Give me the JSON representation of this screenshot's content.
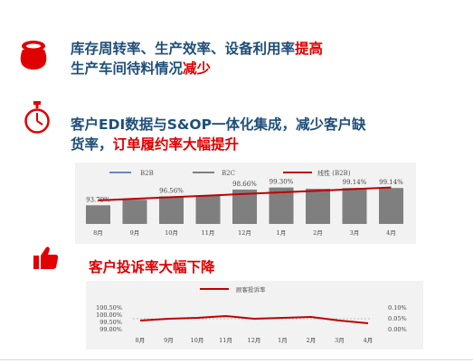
{
  "section1": {
    "icon": "money-bag-icon",
    "line1_text": "库存周转率、生产效率、设备利用率",
    "line1_highlight": "提高",
    "line2_text": "生产车间待料情况",
    "line2_highlight": "减少"
  },
  "section2": {
    "icon": "stopwatch-icon",
    "line1_text": "客户EDI数据与S&OP一体化集成，减少客户缺",
    "line2_text": "货率，",
    "line2_highlight": "订单履约率大幅提升"
  },
  "section3": {
    "icon": "thumbs-up-icon",
    "text": "客户投诉率大幅下降"
  },
  "colors": {
    "title_blue": "#1f4e79",
    "highlight_red": "#e00000",
    "bar_gray": "#7f7f7f",
    "line_red": "#c00000"
  },
  "chart_data": [
    {
      "type": "bar",
      "categories": [
        "8月",
        "9月",
        "10月",
        "11月",
        "12月",
        "1月",
        "2月",
        "3月",
        "4月"
      ],
      "series": [
        {
          "name": "B2B",
          "values": [
            93.79,
            95.5,
            96.56,
            96.8,
            98.66,
            99.3,
            98.9,
            99.14,
            99.14
          ]
        },
        {
          "name": "B2C",
          "values": [
            null,
            null,
            null,
            null,
            null,
            null,
            null,
            null,
            null
          ]
        },
        {
          "name": "线性 (B2B)",
          "values": [
            95.3,
            95.8,
            96.3,
            96.8,
            97.3,
            97.8,
            98.3,
            98.8,
            99.3
          ]
        }
      ],
      "data_labels": [
        {
          "index": 0,
          "text": "93.79%"
        },
        {
          "index": 2,
          "text": "96.56%"
        },
        {
          "index": 4,
          "text": "98.66%"
        },
        {
          "index": 5,
          "text": "99.30%"
        },
        {
          "index": 7,
          "text": "99.14%"
        },
        {
          "index": 8,
          "text": "99.14%"
        }
      ],
      "ylim": [
        88,
        102
      ],
      "legend_position": "top"
    },
    {
      "type": "line",
      "title": "顾客投诉率",
      "categories": [
        "8月",
        "9月",
        "10月",
        "11月",
        "12月",
        "1月",
        "2月",
        "3月",
        "4月"
      ],
      "series": [
        {
          "name": "顾客投诉率",
          "values": [
            0.05,
            0.06,
            0.065,
            0.075,
            0.06,
            0.065,
            0.07,
            0.05,
            0.035
          ]
        }
      ],
      "left_axis_ticks": [
        "100.50%",
        "100.00%",
        "99.50%",
        "99.00%"
      ],
      "right_axis_ticks": [
        "0.10%",
        "0.05%",
        "0.00%"
      ],
      "ylim": [
        0,
        0.12
      ],
      "legend_position": "top"
    }
  ]
}
